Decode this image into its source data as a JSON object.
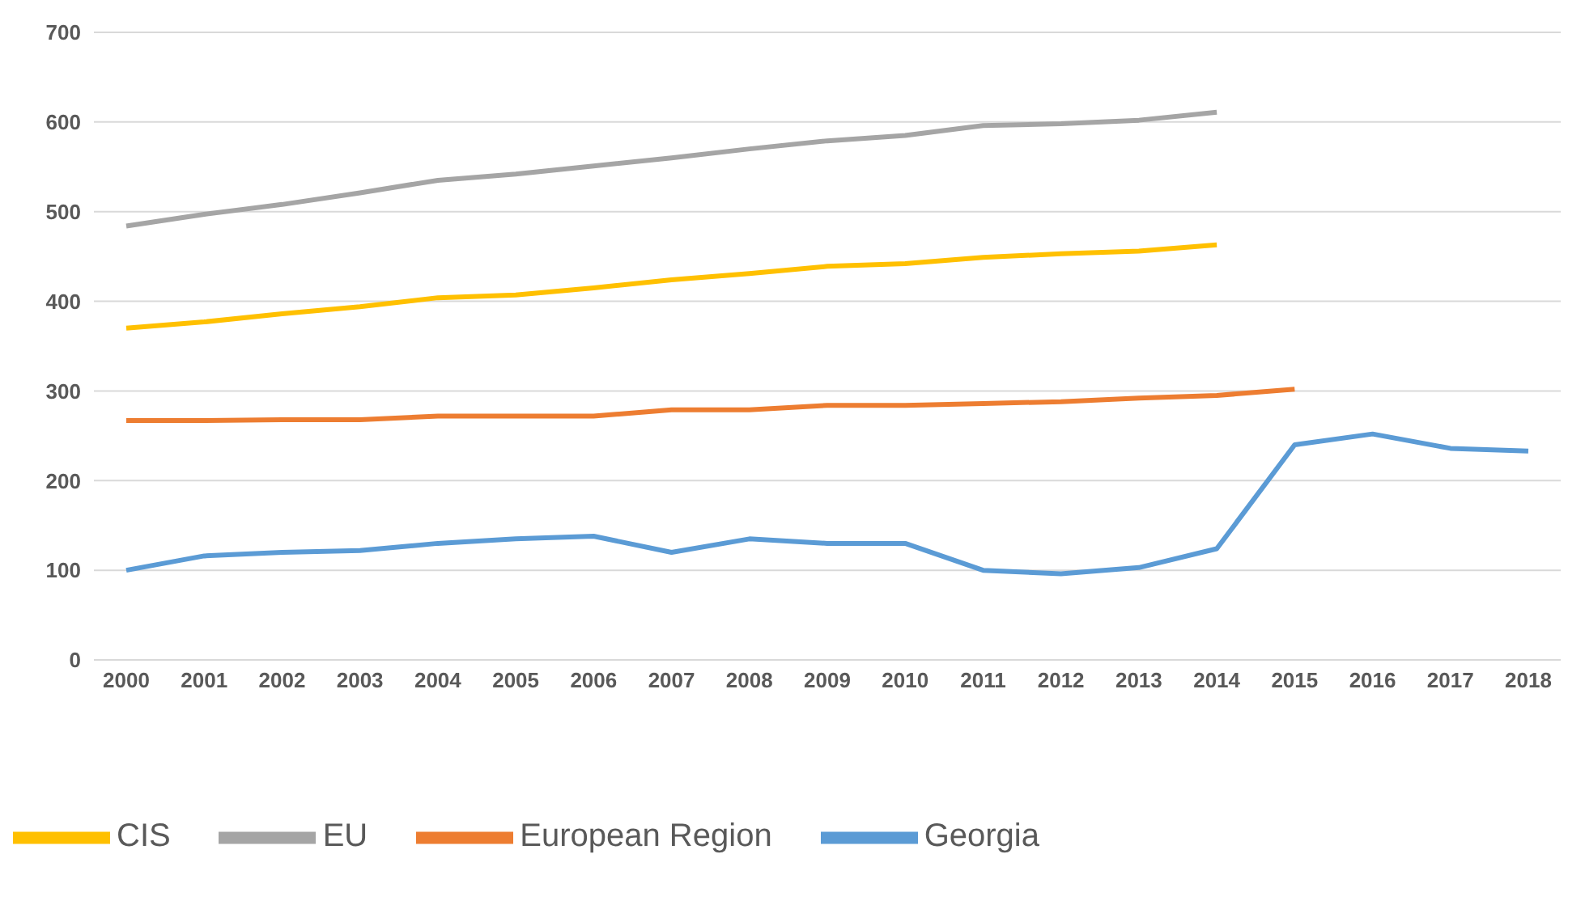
{
  "chart_data": {
    "type": "line",
    "categories": [
      "2000",
      "2001",
      "2002",
      "2003",
      "2004",
      "2005",
      "2006",
      "2007",
      "2008",
      "2009",
      "2010",
      "2011",
      "2012",
      "2013",
      "2014",
      "2015",
      "2016",
      "2017",
      "2018"
    ],
    "series": [
      {
        "name": "Georgia",
        "color": "#5b9bd5",
        "values": [
          100,
          116,
          120,
          122,
          130,
          135,
          138,
          120,
          135,
          130,
          130,
          100,
          96,
          103,
          124,
          240,
          252,
          236,
          233
        ]
      },
      {
        "name": "European Region",
        "color": "#ed7d31",
        "values": [
          267,
          267,
          268,
          268,
          272,
          272,
          272,
          279,
          279,
          284,
          284,
          286,
          288,
          292,
          295,
          302,
          null,
          null,
          null
        ]
      },
      {
        "name": "EU",
        "color": "#a5a5a5",
        "values": [
          484,
          497,
          508,
          521,
          535,
          542,
          551,
          560,
          570,
          579,
          585,
          596,
          598,
          602,
          611,
          null,
          null,
          null,
          null
        ]
      },
      {
        "name": "CIS",
        "color": "#ffc000",
        "values": [
          370,
          377,
          386,
          394,
          404,
          407,
          415,
          424,
          431,
          439,
          442,
          449,
          453,
          456,
          463,
          null,
          null,
          null,
          null
        ]
      }
    ],
    "ylim": [
      0,
      700
    ],
    "yticks": [
      0,
      100,
      200,
      300,
      400,
      500,
      600,
      700
    ],
    "grid": "y",
    "legend": "bottom left",
    "marker": "none",
    "line_style": "solid"
  }
}
